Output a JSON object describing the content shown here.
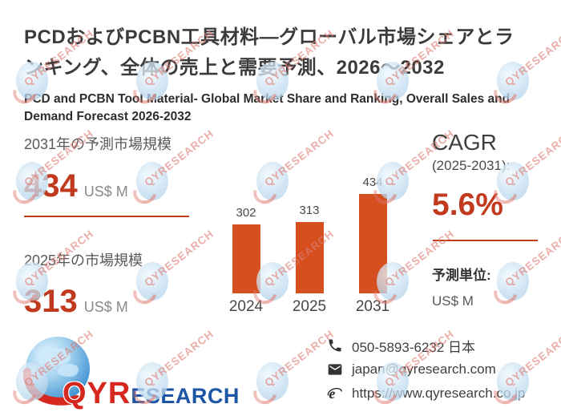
{
  "accent_color": "#c23a1e",
  "bar_color": "#d64f1f",
  "header": {
    "title_ja": "PCDおよびPCBN工具材料—グローバル市場シェアとランキング、全体の売上と需要予測、2026～2032",
    "title_en": "PCD and PCBN Tool Material- Global Market Share and Ranking, Overall Sales and Demand Forecast 2026-2032"
  },
  "stats": {
    "forecast": {
      "label": "2031年の予測市場規模",
      "value": "434",
      "unit": "US$ M"
    },
    "current": {
      "label": "2025年の市場規模",
      "value": "313",
      "unit": "US$ M"
    }
  },
  "chart_data": {
    "type": "bar",
    "categories": [
      "2024",
      "2025",
      "2031"
    ],
    "values": [
      302,
      313,
      434
    ],
    "title": "",
    "xlabel": "",
    "ylabel": "",
    "ylim": [
      0,
      434
    ],
    "bar_color": "#d64f1f",
    "grid": false,
    "legend": false,
    "value_labels": [
      "302",
      "313",
      "434"
    ]
  },
  "cagr": {
    "title": "CAGR",
    "subtitle": "(2025-2031):",
    "value": "5.6%"
  },
  "unit_note": {
    "label": "予測単位:",
    "value": "US$ M"
  },
  "logo": {
    "part_red": "QYR",
    "part_blue": "ESEARCH"
  },
  "contact": {
    "phone": "050-5893-6232 日本",
    "email": "japan@qyresearch.com",
    "website": "https://www.qyresearch.co.jp"
  },
  "watermark": {
    "text": "QYRESEARCH"
  }
}
